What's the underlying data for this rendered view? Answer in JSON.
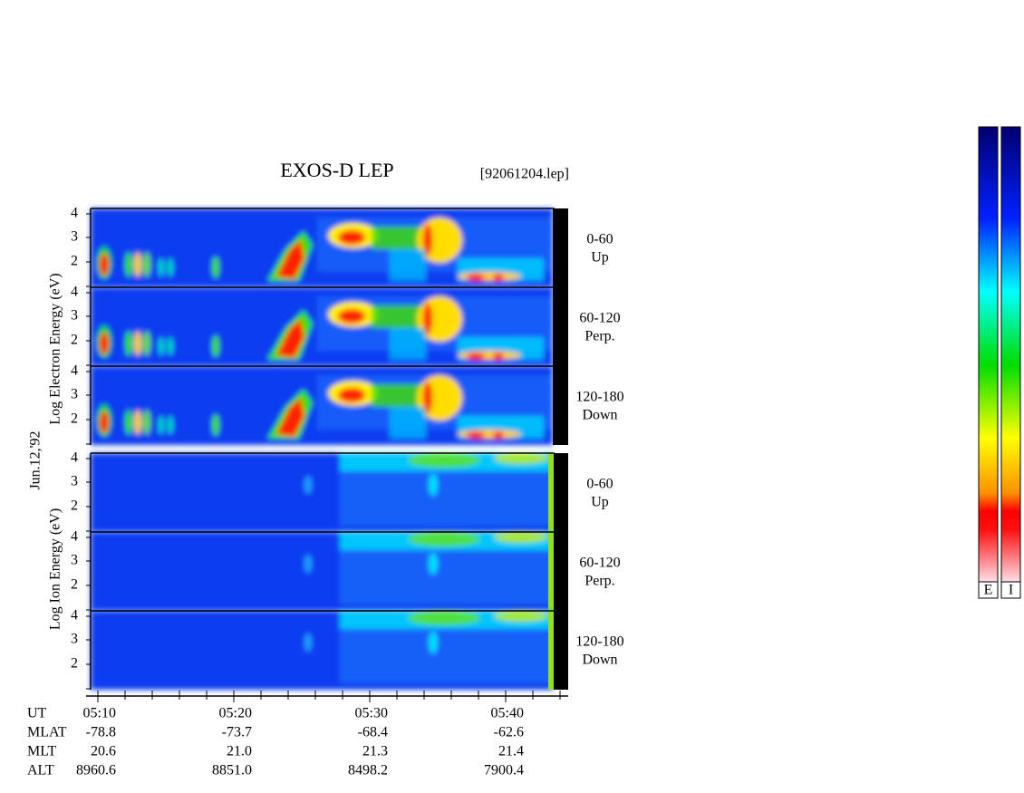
{
  "header": {
    "title": "EXOS-D LEP",
    "file": "[92061204.lep]",
    "date": "Jun.12,'92"
  },
  "yticks": [
    "4",
    "3",
    "2"
  ],
  "groups": [
    {
      "axis_label": "Log  Electron  Energy (eV)",
      "panels": [
        {
          "angle": "0-60",
          "direction": "Up"
        },
        {
          "angle": "60-120",
          "direction": "Perp."
        },
        {
          "angle": "120-180",
          "direction": "Down"
        }
      ]
    },
    {
      "axis_label": "Log   Ion   Energy (eV)",
      "panels": [
        {
          "angle": "0-60",
          "direction": "Up"
        },
        {
          "angle": "60-120",
          "direction": "Perp."
        },
        {
          "angle": "120-180",
          "direction": "Down"
        }
      ]
    }
  ],
  "ephemeris": {
    "rows": [
      {
        "label": "UT",
        "values": [
          "05:10",
          "05:20",
          "05:30",
          "05:40"
        ]
      },
      {
        "label": "MLAT",
        "values": [
          "-78.8",
          "-73.7",
          "-68.4",
          "-62.6"
        ]
      },
      {
        "label": "MLT",
        "values": [
          "20.6",
          "21.0",
          "21.3",
          "21.4"
        ]
      },
      {
        "label": "ALT",
        "values": [
          "8960.6",
          "8851.0",
          "8498.2",
          "7900.4"
        ]
      }
    ]
  },
  "colorbars": [
    "E",
    "I"
  ]
}
